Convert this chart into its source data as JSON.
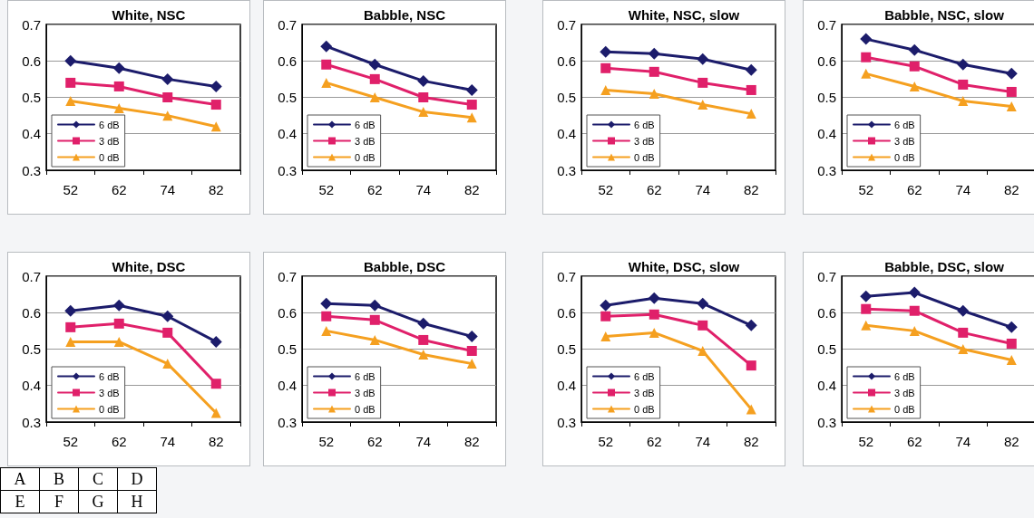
{
  "chart_data": [
    {
      "type": "line",
      "title": "White, NSC",
      "categories": [
        "52",
        "62",
        "74",
        "82"
      ],
      "ylim": [
        0.3,
        0.7
      ],
      "yticks": [
        0.3,
        0.4,
        0.5,
        0.6,
        0.7
      ],
      "grid": "y",
      "legend": "bottom left",
      "series": [
        {
          "name": "6 dB",
          "color": "#1c1c6b",
          "marker": "diamond",
          "values": [
            0.6,
            0.58,
            0.55,
            0.53
          ]
        },
        {
          "name": "3 dB",
          "color": "#e0206a",
          "marker": "square",
          "values": [
            0.54,
            0.53,
            0.5,
            0.48
          ]
        },
        {
          "name": "0 dB",
          "color": "#f5a020",
          "marker": "triangle",
          "values": [
            0.49,
            0.47,
            0.45,
            0.42
          ]
        }
      ]
    },
    {
      "type": "line",
      "title": "Babble, NSC",
      "categories": [
        "52",
        "62",
        "74",
        "82"
      ],
      "ylim": [
        0.3,
        0.7
      ],
      "yticks": [
        0.3,
        0.4,
        0.5,
        0.6,
        0.7
      ],
      "grid": "y",
      "legend": "bottom left",
      "series": [
        {
          "name": "6 dB",
          "color": "#1c1c6b",
          "marker": "diamond",
          "values": [
            0.64,
            0.59,
            0.545,
            0.52
          ]
        },
        {
          "name": "3 dB",
          "color": "#e0206a",
          "marker": "square",
          "values": [
            0.59,
            0.55,
            0.5,
            0.48
          ]
        },
        {
          "name": "0 dB",
          "color": "#f5a020",
          "marker": "triangle",
          "values": [
            0.54,
            0.5,
            0.46,
            0.445
          ]
        }
      ]
    },
    {
      "type": "line",
      "title": "White, NSC, slow",
      "categories": [
        "52",
        "62",
        "74",
        "82"
      ],
      "ylim": [
        0.3,
        0.7
      ],
      "yticks": [
        0.3,
        0.4,
        0.5,
        0.6,
        0.7
      ],
      "grid": "y",
      "legend": "bottom left",
      "series": [
        {
          "name": "6 dB",
          "color": "#1c1c6b",
          "marker": "diamond",
          "values": [
            0.625,
            0.62,
            0.605,
            0.575
          ]
        },
        {
          "name": "3 dB",
          "color": "#e0206a",
          "marker": "square",
          "values": [
            0.58,
            0.57,
            0.54,
            0.52
          ]
        },
        {
          "name": "0 dB",
          "color": "#f5a020",
          "marker": "triangle",
          "values": [
            0.52,
            0.51,
            0.48,
            0.455
          ]
        }
      ]
    },
    {
      "type": "line",
      "title": "Babble, NSC, slow",
      "categories": [
        "52",
        "62",
        "74",
        "82"
      ],
      "ylim": [
        0.3,
        0.7
      ],
      "yticks": [
        0.3,
        0.4,
        0.5,
        0.6,
        0.7
      ],
      "grid": "y",
      "legend": "bottom left",
      "series": [
        {
          "name": "6 dB",
          "color": "#1c1c6b",
          "marker": "diamond",
          "values": [
            0.66,
            0.63,
            0.59,
            0.565
          ]
        },
        {
          "name": "3 dB",
          "color": "#e0206a",
          "marker": "square",
          "values": [
            0.61,
            0.585,
            0.535,
            0.515
          ]
        },
        {
          "name": "0 dB",
          "color": "#f5a020",
          "marker": "triangle",
          "values": [
            0.565,
            0.53,
            0.49,
            0.475
          ]
        }
      ]
    },
    {
      "type": "line",
      "title": "White, DSC",
      "categories": [
        "52",
        "62",
        "74",
        "82"
      ],
      "ylim": [
        0.3,
        0.7
      ],
      "yticks": [
        0.3,
        0.4,
        0.5,
        0.6,
        0.7
      ],
      "grid": "y",
      "legend": "bottom left",
      "series": [
        {
          "name": "6 dB",
          "color": "#1c1c6b",
          "marker": "diamond",
          "values": [
            0.605,
            0.62,
            0.59,
            0.52
          ]
        },
        {
          "name": "3 dB",
          "color": "#e0206a",
          "marker": "square",
          "values": [
            0.56,
            0.57,
            0.545,
            0.405
          ]
        },
        {
          "name": "0 dB",
          "color": "#f5a020",
          "marker": "triangle",
          "values": [
            0.52,
            0.52,
            0.46,
            0.325
          ]
        }
      ]
    },
    {
      "type": "line",
      "title": "Babble, DSC",
      "categories": [
        "52",
        "62",
        "74",
        "82"
      ],
      "ylim": [
        0.3,
        0.7
      ],
      "yticks": [
        0.3,
        0.4,
        0.5,
        0.6,
        0.7
      ],
      "grid": "y",
      "legend": "bottom left",
      "series": [
        {
          "name": "6 dB",
          "color": "#1c1c6b",
          "marker": "diamond",
          "values": [
            0.625,
            0.62,
            0.57,
            0.535
          ]
        },
        {
          "name": "3 dB",
          "color": "#e0206a",
          "marker": "square",
          "values": [
            0.59,
            0.58,
            0.525,
            0.495
          ]
        },
        {
          "name": "0 dB",
          "color": "#f5a020",
          "marker": "triangle",
          "values": [
            0.55,
            0.525,
            0.485,
            0.46
          ]
        }
      ]
    },
    {
      "type": "line",
      "title": "White, DSC, slow",
      "categories": [
        "52",
        "62",
        "74",
        "82"
      ],
      "ylim": [
        0.3,
        0.7
      ],
      "yticks": [
        0.3,
        0.4,
        0.5,
        0.6,
        0.7
      ],
      "grid": "y",
      "legend": "bottom left",
      "series": [
        {
          "name": "6 dB",
          "color": "#1c1c6b",
          "marker": "diamond",
          "values": [
            0.62,
            0.64,
            0.625,
            0.565
          ]
        },
        {
          "name": "3 dB",
          "color": "#e0206a",
          "marker": "square",
          "values": [
            0.59,
            0.595,
            0.565,
            0.455
          ]
        },
        {
          "name": "0 dB",
          "color": "#f5a020",
          "marker": "triangle",
          "values": [
            0.535,
            0.545,
            0.495,
            0.335
          ]
        }
      ]
    },
    {
      "type": "line",
      "title": "Babble, DSC, slow",
      "categories": [
        "52",
        "62",
        "74",
        "82"
      ],
      "ylim": [
        0.3,
        0.7
      ],
      "yticks": [
        0.3,
        0.4,
        0.5,
        0.6,
        0.7
      ],
      "grid": "y",
      "legend": "bottom left",
      "series": [
        {
          "name": "6 dB",
          "color": "#1c1c6b",
          "marker": "diamond",
          "values": [
            0.645,
            0.655,
            0.605,
            0.56
          ]
        },
        {
          "name": "3 dB",
          "color": "#e0206a",
          "marker": "square",
          "values": [
            0.61,
            0.605,
            0.545,
            0.515
          ]
        },
        {
          "name": "0 dB",
          "color": "#f5a020",
          "marker": "triangle",
          "values": [
            0.565,
            0.55,
            0.5,
            0.47
          ]
        }
      ]
    },
    {
      "type": "other",
      "annotations": [
        "A",
        "B",
        "C",
        "D",
        "E",
        "F",
        "G",
        "H"
      ]
    }
  ]
}
